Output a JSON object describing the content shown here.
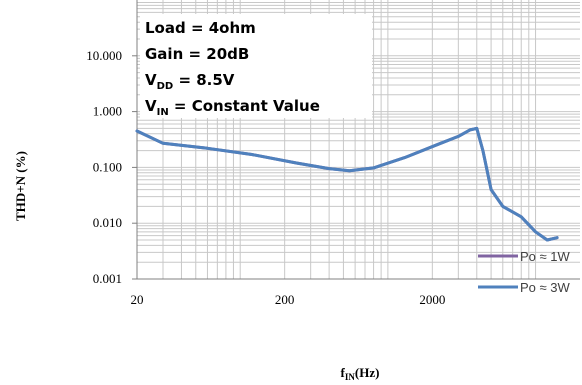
{
  "chart_data": {
    "type": "line",
    "xlabel": {
      "main": "f",
      "sub": "IN",
      "rest": "(Hz)"
    },
    "ylabel": "THD+N (%)",
    "x_scale": "log",
    "y_scale": "log",
    "xlim": [
      20,
      20000
    ],
    "ylim": [
      0.001,
      100
    ],
    "x_ticks": [
      {
        "value": 20,
        "label": "20"
      },
      {
        "value": 200,
        "label": "200"
      },
      {
        "value": 2000,
        "label": "2000"
      }
    ],
    "y_ticks": [
      {
        "value": 0.001,
        "label": "0.001"
      },
      {
        "value": 0.01,
        "label": "0.010"
      },
      {
        "value": 0.1,
        "label": "0.100"
      },
      {
        "value": 1,
        "label": "1.000"
      },
      {
        "value": 10,
        "label": "10.000"
      }
    ],
    "grid": true,
    "annotations": [
      {
        "main": "Load = 4ohm"
      },
      {
        "main": "Gain = 20dB"
      },
      {
        "main": "V",
        "sub": "DD",
        "rest": " = 8.5V"
      },
      {
        "main": "V",
        "sub": "IN",
        "rest": " = Constant Value"
      }
    ],
    "legend_position": "bottom-right",
    "series": [
      {
        "name": "Po ≈ 1W",
        "color": "#8064a2",
        "x": [
          20,
          30,
          60,
          120,
          240,
          400,
          550,
          800,
          1300,
          2200,
          3000,
          3600,
          4000,
          4400,
          5000,
          6000,
          8000,
          10000,
          12000,
          14000
        ],
        "y": [
          0.45,
          0.27,
          0.22,
          0.17,
          0.12,
          0.095,
          0.087,
          0.098,
          0.15,
          0.26,
          0.36,
          0.47,
          0.5,
          0.2,
          0.04,
          0.02,
          0.013,
          0.007,
          0.005,
          0.0055
        ]
      },
      {
        "name": "Po ≈ 3W",
        "color": "#4f81bd",
        "x": [
          20,
          30,
          60,
          120,
          240,
          400,
          550,
          800,
          1300,
          2200,
          3000,
          3600,
          4000,
          4400,
          5000,
          6000,
          8000,
          10000,
          12000,
          14000
        ],
        "y": [
          0.45,
          0.27,
          0.22,
          0.17,
          0.12,
          0.095,
          0.087,
          0.098,
          0.15,
          0.26,
          0.36,
          0.47,
          0.5,
          0.2,
          0.04,
          0.02,
          0.013,
          0.007,
          0.005,
          0.0055
        ]
      }
    ]
  }
}
